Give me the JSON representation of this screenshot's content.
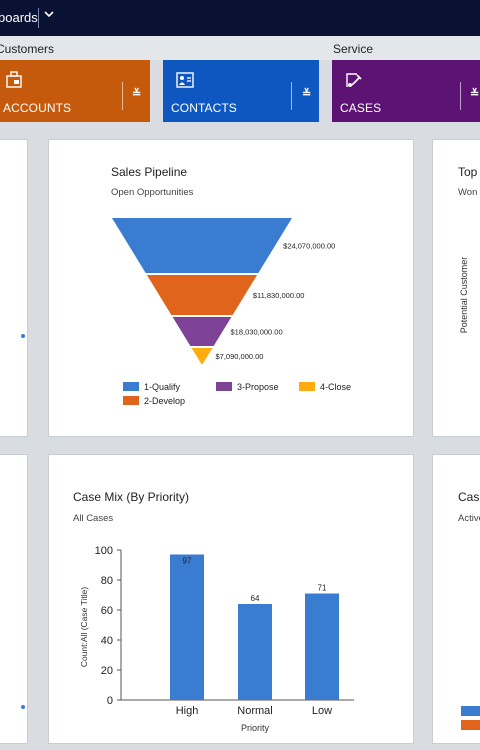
{
  "header": {
    "title": "boards",
    "chevron_icon": "chevron-down-icon"
  },
  "groups": {
    "customers": "Customers",
    "service": "Service"
  },
  "tiles": [
    {
      "label": "ACCOUNTS",
      "color": "#c65a0c",
      "icon": "accounts-icon"
    },
    {
      "label": "CONTACTS",
      "color": "#0f57c0",
      "icon": "contacts-icon"
    },
    {
      "label": "CASES",
      "color": "#5d1373",
      "icon": "cases-icon"
    }
  ],
  "pipeline": {
    "title": "Sales Pipeline",
    "subtitle": "Open Opportunities",
    "chart_data": {
      "type": "funnel",
      "stages": [
        {
          "name": "1-Qualify",
          "value": 24070000,
          "label": "$24,070,000.00",
          "color": "#3a7dd0"
        },
        {
          "name": "2-Develop",
          "value": 11830000,
          "label": "$11,830,000.00",
          "color": "#e0641b"
        },
        {
          "name": "3-Propose",
          "value": 18030000,
          "label": "$18,030,000.00",
          "color": "#7e4396"
        },
        {
          "name": "4-Close",
          "value": 7090000,
          "label": "$7,090,000.00",
          "color": "#ffac10"
        }
      ]
    }
  },
  "right_top": {
    "title": "Top",
    "subtitle": "Won",
    "yaxis": "Potential Customer"
  },
  "casemix": {
    "title": "Case Mix (By Priority)",
    "subtitle": "All Cases",
    "chart_data": {
      "type": "bar",
      "categories": [
        "High",
        "Normal",
        "Low"
      ],
      "values": [
        97,
        64,
        71
      ],
      "xlabel": "Priority",
      "ylabel": "Count:All (Case Title)",
      "ylim": [
        0,
        100
      ],
      "yticks": [
        0,
        20,
        40,
        60,
        80,
        100
      ],
      "color": "#3a7dd0"
    }
  },
  "right_bottom": {
    "title": "Case",
    "subtitle": "Active",
    "legend_colors": [
      "#3a7dd0",
      "#e0641b"
    ]
  }
}
